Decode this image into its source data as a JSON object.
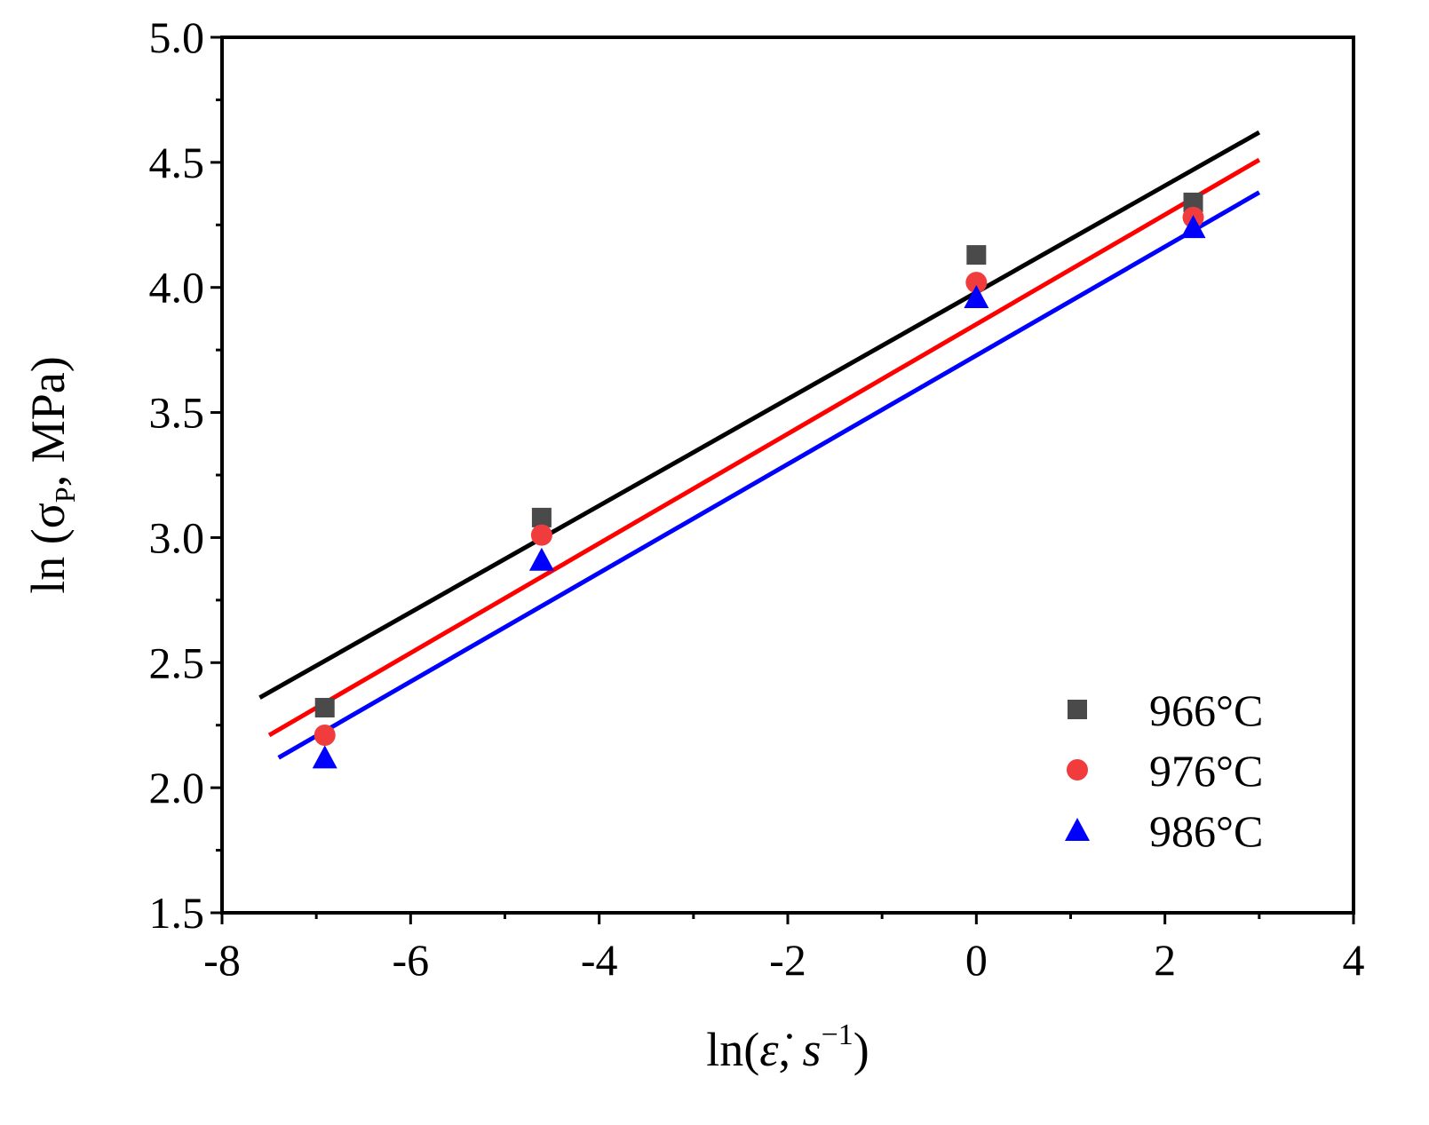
{
  "chart_data": {
    "type": "scatter",
    "title": "",
    "xlabel": {
      "prefix": "ln(",
      "var": "ε̇",
      "sep": ", ",
      "unit": "s",
      "sup": "−1",
      "suffix": ")"
    },
    "ylabel": {
      "prefix": "ln (σ",
      "sub": "P",
      "suffix": ", MPa)"
    },
    "xlim": [
      -8,
      4
    ],
    "ylim": [
      1.5,
      5.0
    ],
    "x_ticks": [
      -8,
      -6,
      -4,
      -2,
      0,
      2,
      4
    ],
    "x_tick_labels": [
      "-8",
      "-6",
      "-4",
      "-2",
      "0",
      "2",
      "4"
    ],
    "y_ticks": [
      1.5,
      2.0,
      2.5,
      3.0,
      3.5,
      4.0,
      4.5,
      5.0
    ],
    "y_tick_labels": [
      "1.5",
      "2.0",
      "2.5",
      "3.0",
      "3.5",
      "4.0",
      "4.5",
      "5.0"
    ],
    "grid": false,
    "legend_position": "bottom-right",
    "series": [
      {
        "name": "966°C",
        "marker": "square",
        "marker_color": "#4a4a4a",
        "line_color": "#000000",
        "x": [
          -6.91,
          -4.61,
          0.0,
          2.3
        ],
        "y": [
          2.32,
          3.08,
          4.13,
          4.34
        ],
        "fit": {
          "x": [
            -7.6,
            3.0
          ],
          "y": [
            2.36,
            4.62
          ]
        }
      },
      {
        "name": "976°C",
        "marker": "circle",
        "marker_color": "#f03c3c",
        "line_color": "#ff0000",
        "x": [
          -6.91,
          -4.61,
          0.0,
          2.3
        ],
        "y": [
          2.21,
          3.01,
          4.02,
          4.28
        ],
        "fit": {
          "x": [
            -7.5,
            3.0
          ],
          "y": [
            2.21,
            4.51
          ]
        }
      },
      {
        "name": "986°C",
        "marker": "triangle",
        "marker_color": "#0000ff",
        "line_color": "#0000ff",
        "x": [
          -6.91,
          -4.61,
          0.0,
          2.3
        ],
        "y": [
          2.12,
          2.91,
          3.96,
          4.24
        ],
        "fit": {
          "x": [
            -7.4,
            3.0
          ],
          "y": [
            2.12,
            4.38
          ]
        }
      }
    ]
  }
}
